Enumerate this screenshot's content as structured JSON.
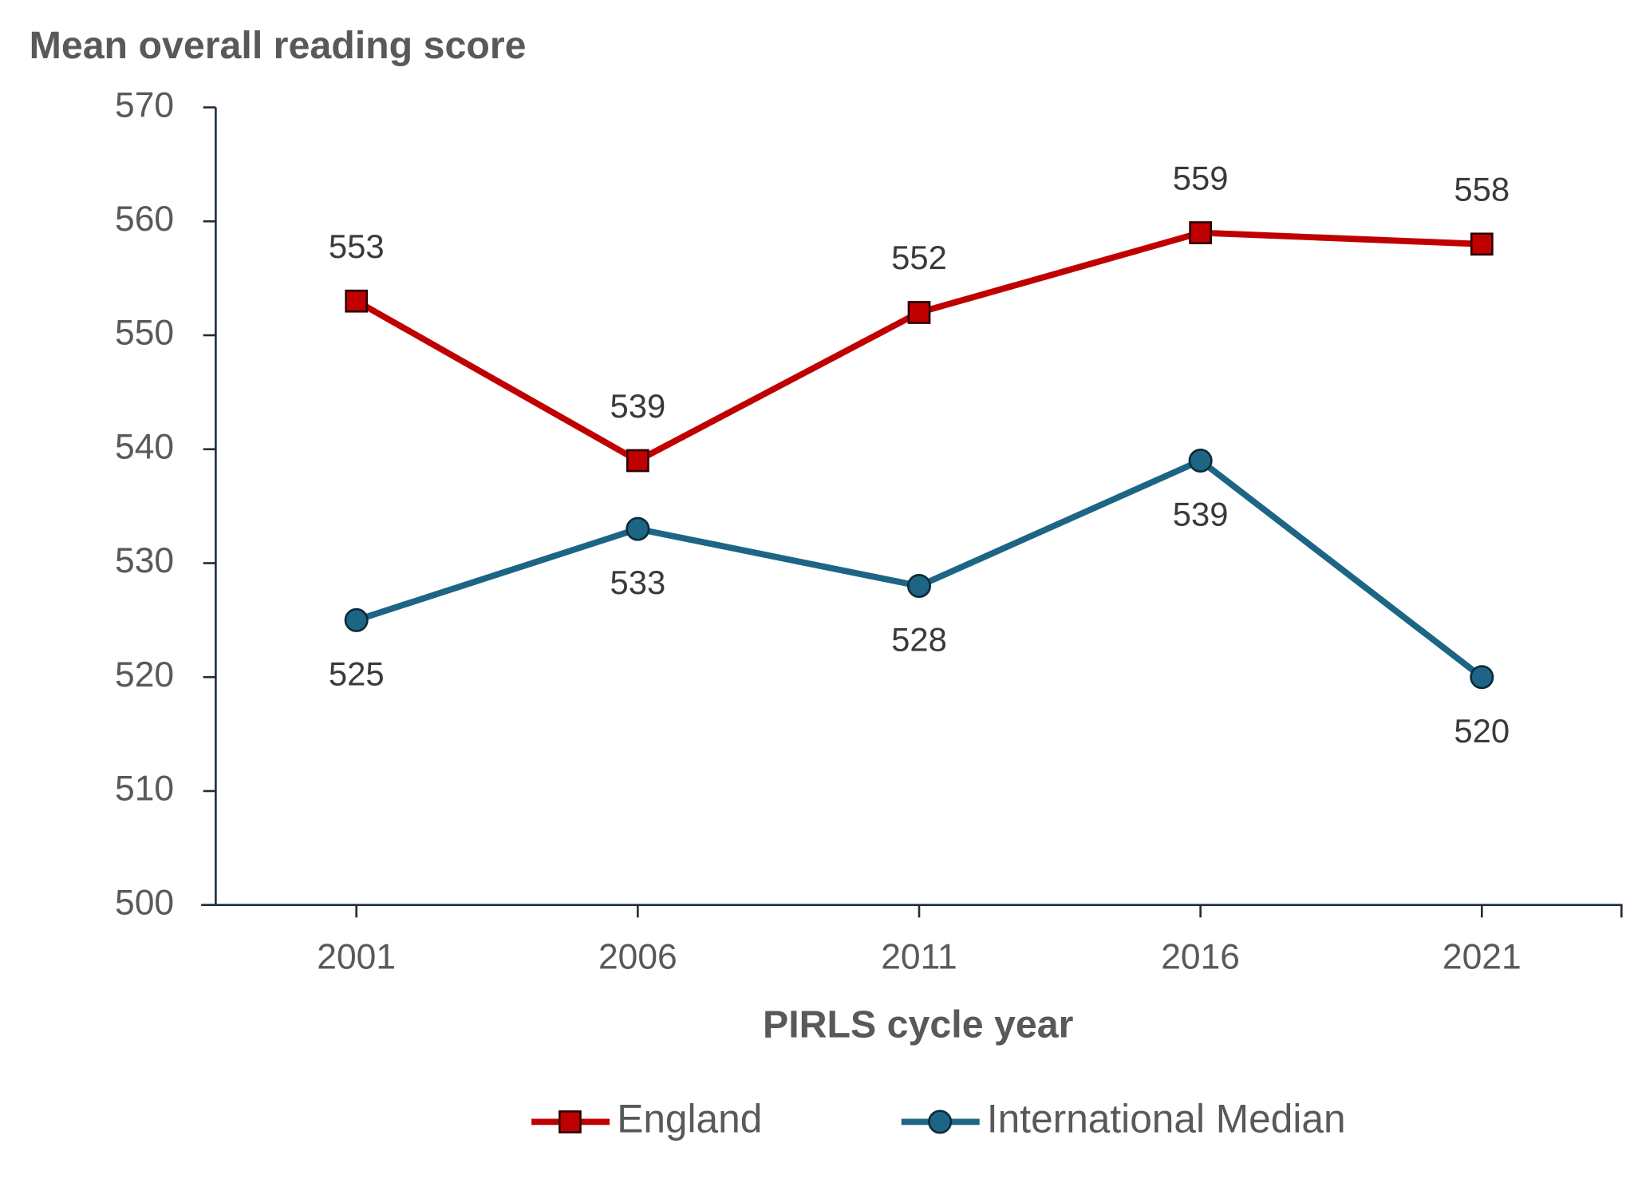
{
  "chart_data": {
    "type": "line",
    "y_label": "Mean overall reading score",
    "x_label": "PIRLS cycle year",
    "categories": [
      "2001",
      "2006",
      "2011",
      "2016",
      "2021"
    ],
    "series": [
      {
        "name": "England",
        "color": "#c00000",
        "marker": "square",
        "label_position": "above",
        "values": [
          553,
          539,
          552,
          559,
          558
        ]
      },
      {
        "name": "International Median",
        "color": "#1d6585",
        "marker": "circle",
        "label_position": "below",
        "values": [
          525,
          533,
          528,
          539,
          520
        ]
      }
    ],
    "ylim": [
      500,
      570
    ],
    "yticks": [
      500,
      510,
      520,
      530,
      540,
      550,
      560,
      570
    ],
    "grid": false
  }
}
